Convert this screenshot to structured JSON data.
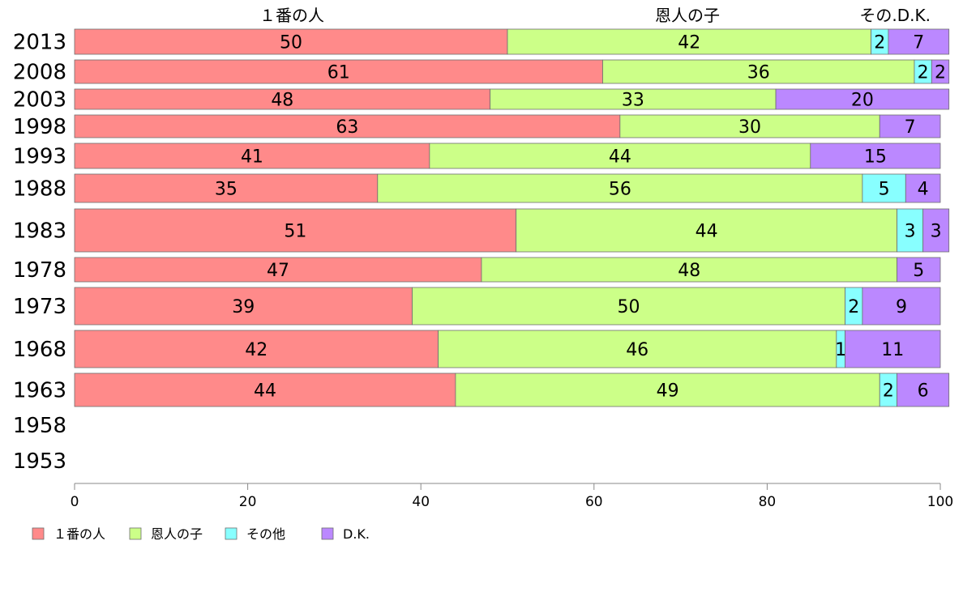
{
  "chart_data": {
    "type": "bar",
    "orientation": "horizontal",
    "stacked": true,
    "title": "",
    "xlabel": "",
    "ylabel": "",
    "xlim": [
      0,
      100
    ],
    "x_ticks": [
      "0",
      "20",
      "40",
      "60",
      "80",
      "100"
    ],
    "categories": [
      "2013",
      "2008",
      "2003",
      "1998",
      "1993",
      "1988",
      "1983",
      "1978",
      "1973",
      "1968",
      "1963",
      "1958",
      "1953"
    ],
    "series": [
      {
        "name": "１番の人",
        "color": "#ff8a8a",
        "values": [
          50,
          61,
          48,
          63,
          41,
          35,
          51,
          47,
          39,
          42,
          44,
          null,
          null
        ]
      },
      {
        "name": "恩人の子",
        "color": "#ccff88",
        "values": [
          42,
          36,
          33,
          30,
          44,
          56,
          44,
          48,
          50,
          46,
          49,
          null,
          null
        ]
      },
      {
        "name": "その他",
        "color": "#88ffff",
        "values": [
          2,
          2,
          null,
          null,
          null,
          5,
          3,
          null,
          2,
          1,
          2,
          null,
          null
        ]
      },
      {
        "name": "D.K.",
        "color": "#bb88ff",
        "values": [
          7,
          2,
          20,
          7,
          15,
          4,
          3,
          5,
          9,
          11,
          6,
          null,
          null
        ]
      }
    ],
    "header_labels": [
      "１番の人",
      "恩人の子",
      "その.D.K."
    ],
    "grid": false,
    "legend_position": "bottom-left"
  }
}
